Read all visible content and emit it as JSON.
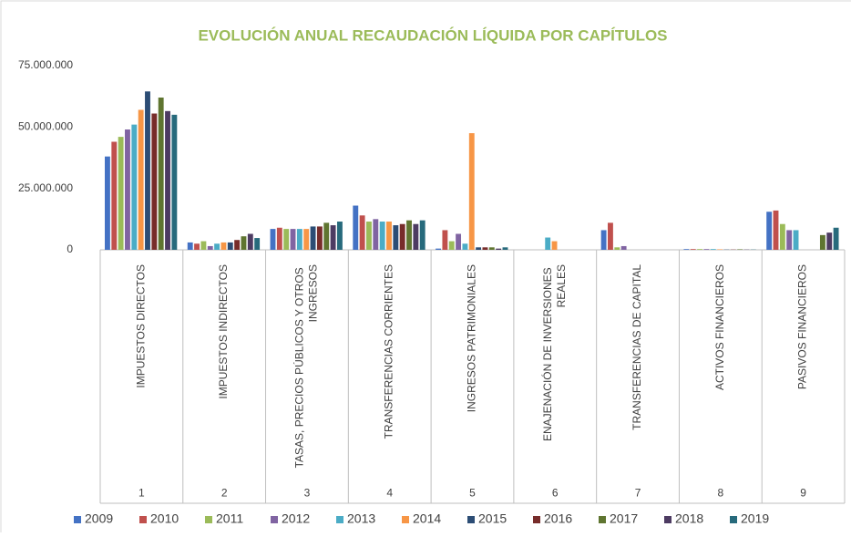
{
  "chart_data": {
    "type": "bar",
    "title": "EVOLUCIÓN ANUAL RECAUDACIÓN LÍQUIDA POR CAPÍTULOS",
    "categories": [
      "IMPUESTOS DIRECTOS",
      "IMPUESTOS INDIRECTOS",
      "TASAS, PRECIOS PÚBLICOS Y OTROS INGRESOS",
      "TRANSFERENCIAS CORRIENTES",
      "INGRESOS PATRIMONIALES",
      "ENAJENACIÓN DE INVERSIONES REALES",
      "TRANSFERENCIAS DE CAPITAL",
      "ACTIVOS FINANCIEROS",
      "PASIVOS FINANCIEROS"
    ],
    "category_numbers": [
      "1",
      "2",
      "3",
      "4",
      "5",
      "6",
      "7",
      "8",
      "9"
    ],
    "series": [
      {
        "name": "2009",
        "color": "#4472c4",
        "values": [
          38000000,
          3000000,
          8500000,
          18000000,
          500000,
          0,
          8000000,
          300000,
          15500000
        ]
      },
      {
        "name": "2010",
        "color": "#c0504d",
        "values": [
          44000000,
          2500000,
          9000000,
          14000000,
          8000000,
          0,
          11000000,
          300000,
          16000000
        ]
      },
      {
        "name": "2011",
        "color": "#9bbb59",
        "values": [
          46000000,
          3500000,
          8500000,
          11500000,
          3500000,
          0,
          1000000,
          300000,
          10500000
        ]
      },
      {
        "name": "2012",
        "color": "#8064a2",
        "values": [
          49000000,
          1500000,
          8500000,
          12500000,
          6500000,
          0,
          1500000,
          300000,
          8000000
        ]
      },
      {
        "name": "2013",
        "color": "#4bacc6",
        "values": [
          51000000,
          2500000,
          8500000,
          11500000,
          2500000,
          5000000,
          0,
          300000,
          8000000
        ]
      },
      {
        "name": "2014",
        "color": "#f79646",
        "values": [
          57000000,
          3000000,
          8500000,
          11500000,
          47500000,
          3500000,
          0,
          200000,
          0
        ]
      },
      {
        "name": "2015",
        "color": "#2c4d75",
        "values": [
          64500000,
          3000000,
          9500000,
          10000000,
          1000000,
          0,
          0,
          100000,
          0
        ]
      },
      {
        "name": "2016",
        "color": "#772c2a",
        "values": [
          55500000,
          4000000,
          9500000,
          10500000,
          1000000,
          0,
          0,
          100000,
          0
        ]
      },
      {
        "name": "2017",
        "color": "#5f7530",
        "values": [
          62000000,
          5500000,
          11000000,
          12000000,
          1000000,
          0,
          0,
          200000,
          6000000
        ]
      },
      {
        "name": "2018",
        "color": "#4d3b62",
        "values": [
          56500000,
          6500000,
          10000000,
          10500000,
          500000,
          0,
          0,
          100000,
          7000000
        ]
      },
      {
        "name": "2019",
        "color": "#276a7c",
        "values": [
          55000000,
          4800000,
          11500000,
          12000000,
          1000000,
          0,
          0,
          100000,
          9000000
        ]
      }
    ],
    "ylim": [
      0,
      75000000
    ],
    "yticks": [
      0,
      {
        "value": 25000000,
        "label": "25.000.000"
      },
      {
        "value": 50000000,
        "label": "50.000.000"
      },
      {
        "value": 75000000,
        "label": "75.000.000"
      }
    ],
    "grid": false,
    "legend": "bottom"
  }
}
